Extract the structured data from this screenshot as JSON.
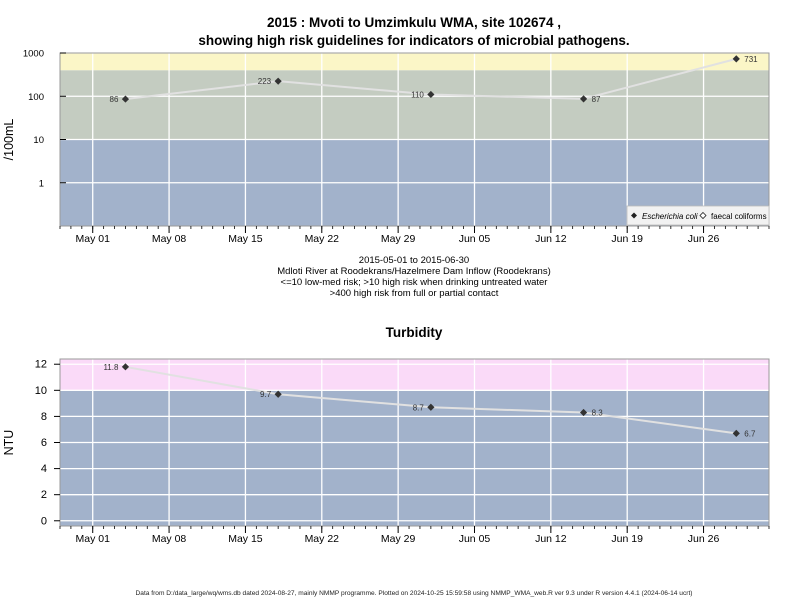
{
  "title_line1": "2015 : Mvoti to Umzimkulu WMA, site 102674 ,",
  "title_line2": "showing high risk guidelines for indicators of microbial pathogens.",
  "subtitle_lines": [
    "2015-05-01 to 2015-06-30",
    "Mdloti River at Roodekrans/Hazelmere Dam Inflow (Roodekrans)",
    "<=10 low-med risk; >10 high risk when drinking untreated water",
    ">400 high risk from full or partial contact"
  ],
  "footer": "Data from D:/data_large/wq/wms.db dated 2024-08-27, mainly NMMP programme. Plotted on 2024-10-25 15:59:58 using NMMP_WMA_web.R ver 9.3 under R version 4.4.1 (2024-06-14 ucrt)",
  "colors": {
    "low_band": "#a2b2cb",
    "mid_band": "#c4ccc1",
    "high_band": "#fbf6c7",
    "turb_high_band": "#fadaf8",
    "grid": "#ffffff",
    "line": "#e1e1e1",
    "point": "#333333"
  },
  "chart_data": [
    {
      "type": "line",
      "title": "",
      "ylabel": "/100mL",
      "yscale": "log",
      "ylim": [
        0.1,
        1000
      ],
      "yticks": [
        1,
        10,
        100,
        1000
      ],
      "ytick_labels": [
        "1",
        "10",
        "100",
        "1000"
      ],
      "xlim": [
        "2015-04-28",
        "2015-07-02"
      ],
      "xticks": [
        "2015-05-01",
        "2015-05-08",
        "2015-05-15",
        "2015-05-22",
        "2015-05-29",
        "2015-06-05",
        "2015-06-12",
        "2015-06-19",
        "2015-06-26"
      ],
      "xtick_labels": [
        "May 01",
        "May 08",
        "May 15",
        "May 22",
        "May 29",
        "Jun 05",
        "Jun 12",
        "Jun 19",
        "Jun 26"
      ],
      "bands": [
        {
          "from": 0.1,
          "to": 10,
          "color": "#a2b2cb"
        },
        {
          "from": 10,
          "to": 400,
          "color": "#c4ccc1"
        },
        {
          "from": 400,
          "to": 1000,
          "color": "#fbf6c7"
        }
      ],
      "grid": true,
      "legend": {
        "position": "bottom-right",
        "entries": [
          "Escherichia coli",
          "faecal coliforms"
        ]
      },
      "series": [
        {
          "name": "Escherichia coli",
          "marker": "diamond",
          "points": [
            {
              "x": "2015-05-04",
              "y": 86,
              "label": "86",
              "label_side": "left"
            },
            {
              "x": "2015-05-18",
              "y": 223,
              "label": "223",
              "label_side": "left"
            },
            {
              "x": "2015-06-01",
              "y": 110,
              "label": "110",
              "label_side": "left"
            },
            {
              "x": "2015-06-15",
              "y": 87,
              "label": "87",
              "label_side": "right"
            },
            {
              "x": "2015-06-29",
              "y": 731,
              "label": "731",
              "label_side": "right"
            }
          ]
        }
      ]
    },
    {
      "type": "line",
      "title": "Turbidity",
      "ylabel": "NTU",
      "yscale": "linear",
      "ylim": [
        -0.4,
        12.4
      ],
      "yticks": [
        0,
        2,
        4,
        6,
        8,
        10,
        12
      ],
      "ytick_labels": [
        "0",
        "2",
        "4",
        "6",
        "8",
        "10",
        "12"
      ],
      "xlim": [
        "2015-04-28",
        "2015-07-02"
      ],
      "xticks": [
        "2015-05-01",
        "2015-05-08",
        "2015-05-15",
        "2015-05-22",
        "2015-05-29",
        "2015-06-05",
        "2015-06-12",
        "2015-06-19",
        "2015-06-26"
      ],
      "xtick_labels": [
        "May 01",
        "May 08",
        "May 15",
        "May 22",
        "May 29",
        "Jun 05",
        "Jun 12",
        "Jun 19",
        "Jun 26"
      ],
      "bands": [
        {
          "from": -0.4,
          "to": 10,
          "color": "#a2b2cb"
        },
        {
          "from": 10,
          "to": 12.4,
          "color": "#fadaf8"
        }
      ],
      "grid": true,
      "series": [
        {
          "name": "",
          "marker": "diamond",
          "points": [
            {
              "x": "2015-05-04",
              "y": 11.8,
              "label": "11.8",
              "label_side": "left"
            },
            {
              "x": "2015-05-18",
              "y": 9.7,
              "label": "9.7",
              "label_side": "left"
            },
            {
              "x": "2015-06-01",
              "y": 8.7,
              "label": "8.7",
              "label_side": "left"
            },
            {
              "x": "2015-06-15",
              "y": 8.3,
              "label": "8.3",
              "label_side": "right"
            },
            {
              "x": "2015-06-29",
              "y": 6.7,
              "label": "6.7",
              "label_side": "right"
            }
          ]
        }
      ]
    }
  ]
}
